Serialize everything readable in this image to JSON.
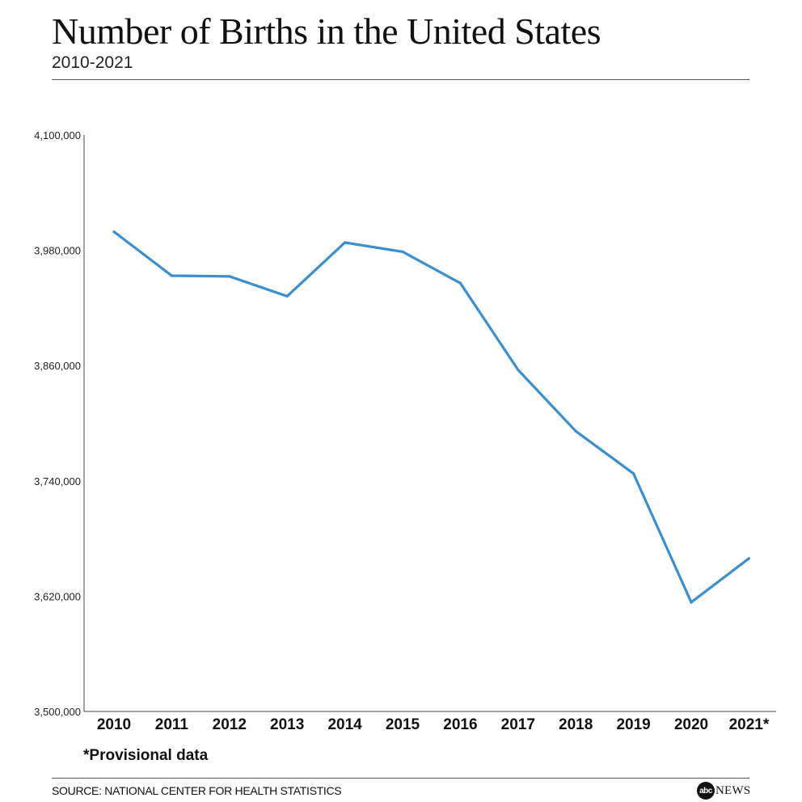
{
  "header": {
    "title": "Number of Births in the United States",
    "subtitle": "2010-2021"
  },
  "footer": {
    "footnote": "*Provisional data",
    "source": "SOURCE: NATIONAL CENTER FOR HEALTH STATISTICS",
    "logo_mark": "abc",
    "logo_text": "NEWS"
  },
  "chart_data": {
    "type": "line",
    "title": "Number of Births in the United States",
    "subtitle": "2010-2021",
    "categories": [
      "2010",
      "2011",
      "2012",
      "2013",
      "2014",
      "2015",
      "2016",
      "2017",
      "2018",
      "2019",
      "2020",
      "2021*"
    ],
    "series": [
      {
        "values": [
          3999386,
          3953590,
          3952841,
          3932181,
          3988076,
          3978497,
          3945875,
          3855500,
          3791712,
          3747540,
          3613647,
          3659289
        ],
        "color": "#3a8fd1"
      }
    ],
    "ylim": [
      3500000,
      4100000
    ],
    "yticks": [
      3500000,
      3620000,
      3740000,
      3860000,
      3980000,
      4100000
    ],
    "ytick_labels": [
      "3,500,000",
      "3,620,000",
      "3,740,000",
      "3,860,000",
      "3,980,000",
      "4,100,000"
    ],
    "grid": false,
    "legend": "none"
  }
}
